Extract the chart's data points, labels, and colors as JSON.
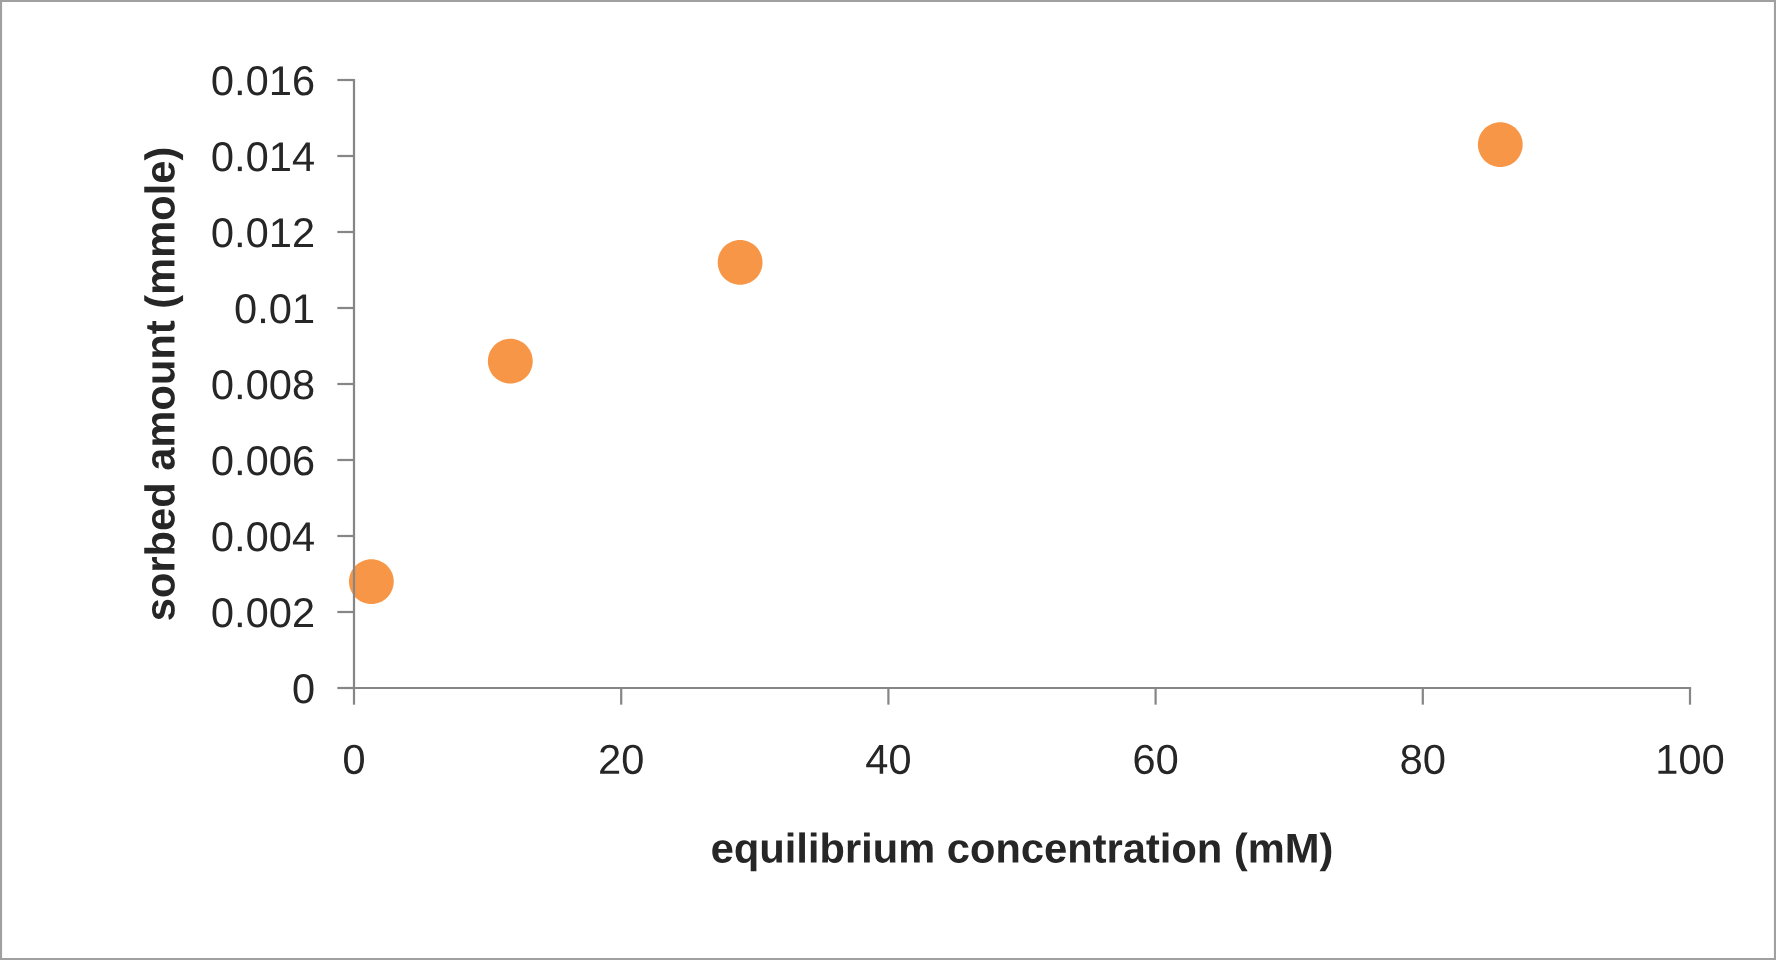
{
  "chart_data": {
    "type": "scatter",
    "xlabel": "equilibrium concentration (mM)",
    "ylabel": "sorbed amount (mmole)",
    "x": [
      1.3,
      11.7,
      28.9,
      85.8
    ],
    "series": [
      {
        "color": "#f79646",
        "values": [
          0.0028,
          0.0086,
          0.0112,
          0.0143
        ]
      }
    ],
    "xlim": [
      0,
      100
    ],
    "xticks": [
      0,
      20,
      40,
      60,
      80,
      100
    ],
    "ylim": [
      0,
      0.016
    ],
    "yticks": [
      0,
      0.002,
      0.004,
      0.006,
      0.008,
      0.01,
      0.012,
      0.014,
      0.016
    ],
    "marker": "circle",
    "grid": false,
    "legend": false
  }
}
